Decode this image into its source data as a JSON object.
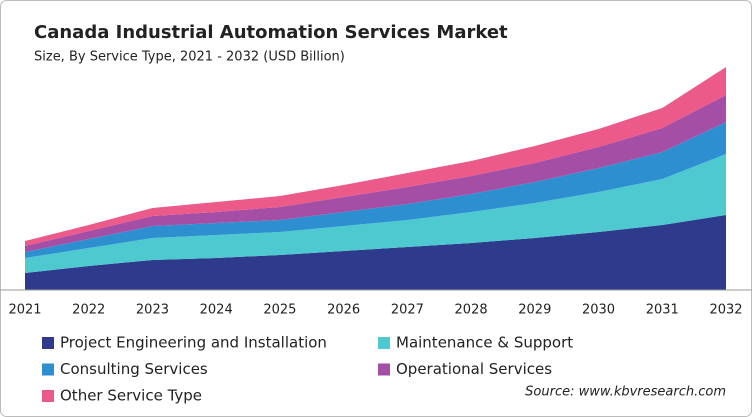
{
  "chart_data": {
    "type": "stacked-area",
    "title": "Canada Industrial Automation Services Market",
    "subtitle": "Size, By Service Type, 2021 - 2032 (USD Billion)",
    "source": "Source: www.kbvresearch.com",
    "categories": [
      "2021",
      "2022",
      "2023",
      "2024",
      "2025",
      "2026",
      "2027",
      "2028",
      "2029",
      "2030",
      "2031",
      "2032"
    ],
    "series": [
      {
        "name": "Project Engineering and Installation",
        "color": "#2e3a8c",
        "values": [
          1.7,
          2.4,
          3.0,
          3.2,
          3.5,
          3.9,
          4.3,
          4.7,
          5.2,
          5.8,
          6.5,
          7.5
        ]
      },
      {
        "name": "Maintenance & Support",
        "color": "#4ec9d0",
        "values": [
          1.5,
          1.8,
          2.2,
          2.3,
          2.3,
          2.5,
          2.7,
          3.1,
          3.5,
          4.0,
          4.6,
          6.1
        ]
      },
      {
        "name": "Consulting Services",
        "color": "#2e8fd0",
        "values": [
          0.6,
          0.9,
          1.2,
          1.2,
          1.2,
          1.4,
          1.6,
          1.8,
          2.1,
          2.4,
          2.7,
          3.2
        ]
      },
      {
        "name": "Operational Services",
        "color": "#a44ea6",
        "values": [
          0.6,
          0.8,
          1.0,
          1.1,
          1.3,
          1.5,
          1.7,
          1.8,
          1.9,
          2.1,
          2.4,
          2.7
        ]
      },
      {
        "name": "Other Service Type",
        "color": "#ec5a8a",
        "values": [
          0.5,
          0.6,
          0.8,
          1.0,
          1.1,
          1.2,
          1.4,
          1.5,
          1.7,
          1.8,
          2.0,
          2.8
        ]
      }
    ]
  }
}
